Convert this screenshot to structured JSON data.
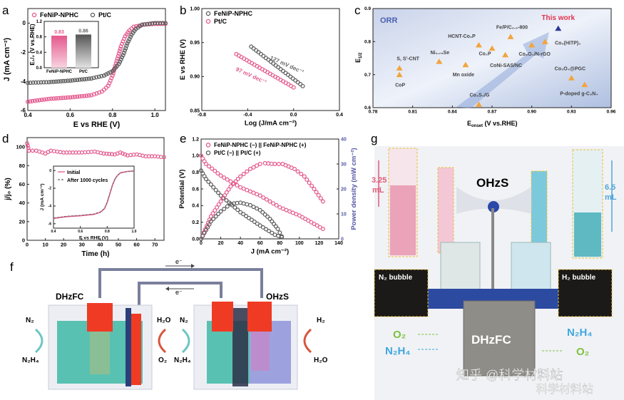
{
  "panel_letters": {
    "a": "a",
    "b": "b",
    "c": "c",
    "d": "d",
    "e": "e",
    "f": "f",
    "g": "g"
  },
  "colors": {
    "pink": "#e4588c",
    "gray": "#5a5a5a",
    "orange": "#f2a43c",
    "navy": "#2b3a96",
    "red": "#e2324e",
    "power_axis": "#5656a6"
  },
  "chart_data": [
    {
      "id": "a",
      "type": "scatter",
      "xlabel": "E vs RHE (V)",
      "ylabel": "J (mA cm⁻²)",
      "xlim": [
        0.4,
        1.05
      ],
      "ylim": [
        -6,
        1
      ],
      "xticks": [
        "0.4",
        "0.6",
        "0.8",
        "1.0"
      ],
      "yticks": [
        "-6",
        "-4",
        "-2",
        "0"
      ],
      "legend": "top-left",
      "series": [
        {
          "name": "FeNiP-NPHC",
          "color": "#e4588c",
          "points": [
            [
              0.4,
              -5.4
            ],
            [
              0.5,
              -5.2
            ],
            [
              0.6,
              -5.1
            ],
            [
              0.7,
              -4.95
            ],
            [
              0.75,
              -4.7
            ],
            [
              0.78,
              -4.3
            ],
            [
              0.8,
              -3.6
            ],
            [
              0.82,
              -2.6
            ],
            [
              0.84,
              -1.6
            ],
            [
              0.86,
              -0.9
            ],
            [
              0.88,
              -0.5
            ],
            [
              0.9,
              -0.25
            ],
            [
              0.95,
              -0.1
            ],
            [
              1.0,
              -0.05
            ],
            [
              1.05,
              -0.05
            ]
          ]
        },
        {
          "name": "Pt/C",
          "color": "#5a5a5a",
          "points": [
            [
              0.4,
              -4.1
            ],
            [
              0.5,
              -4.05
            ],
            [
              0.6,
              -3.95
            ],
            [
              0.7,
              -3.8
            ],
            [
              0.76,
              -3.6
            ],
            [
              0.8,
              -3.3
            ],
            [
              0.83,
              -2.8
            ],
            [
              0.85,
              -2.2
            ],
            [
              0.87,
              -1.4
            ],
            [
              0.89,
              -0.8
            ],
            [
              0.91,
              -0.4
            ],
            [
              0.94,
              -0.1
            ],
            [
              1.0,
              0
            ],
            [
              1.05,
              0
            ]
          ]
        }
      ]
    },
    {
      "id": "a-inset",
      "type": "bar",
      "categories": [
        "FeNiP-NPHC",
        "Pt/C"
      ],
      "values": [
        0.83,
        0.86
      ],
      "data_labels": [
        "0.83",
        "0.86"
      ],
      "colors": [
        "#e4588c",
        "#666666"
      ],
      "ylabel": "E₁/₂ (V vs.RHE)",
      "ylim": [
        0,
        1.2
      ],
      "yticks": [
        "0.0",
        "0.4",
        "0.8",
        "1.2"
      ]
    },
    {
      "id": "b",
      "type": "scatter",
      "xlabel": "Log (J/mA cm⁻²)",
      "ylabel": "E vs RHE (V)",
      "xlim": [
        -0.8,
        0.4
      ],
      "ylim": [
        0.85,
        1.0
      ],
      "xticks": [
        "-0.8",
        "-0.4",
        "0.0",
        "0.4"
      ],
      "yticks": [
        "0.85",
        "0.90",
        "0.95",
        "1.00"
      ],
      "legend": "top-left",
      "series": [
        {
          "name": "FeNiP-NPHC",
          "color": "#5a5a5a",
          "points": [
            [
              -0.37,
              0.944
            ],
            [
              0.08,
              0.886
            ]
          ]
        },
        {
          "name": "Pt/C",
          "color": "#e4588c",
          "points": [
            [
              -0.5,
              0.933
            ],
            [
              0.0,
              0.884
            ]
          ]
        }
      ],
      "annotations": [
        "127 mV dec⁻¹",
        "97 mV dec⁻¹"
      ]
    },
    {
      "id": "c",
      "type": "scatter",
      "xlabel": "E_onset (V vs.RHE)",
      "ylabel": "E1/2",
      "xlabel_main": "E",
      "xlabel_sub": "onset",
      "xlabel_rest": " (V vs.RHE)",
      "ylabel_main": "E",
      "ylabel_sub": "1/2",
      "xlim": [
        0.78,
        0.96
      ],
      "ylim": [
        0.6,
        0.9
      ],
      "xticks": [
        "0.78",
        "0.81",
        "0.84",
        "0.87",
        "0.90",
        "0.93",
        "0.96"
      ],
      "yticks": [
        "0.6",
        "0.7",
        "0.8",
        "0.9"
      ],
      "corner_label": "ORR",
      "points": [
        {
          "label": "S, S'-CNT",
          "x": 0.8,
          "y": 0.72
        },
        {
          "label": "CoP",
          "x": 0.8,
          "y": 0.7
        },
        {
          "label": "Ni₀.₇₅Se",
          "x": 0.83,
          "y": 0.74
        },
        {
          "label": "Mn oxide",
          "x": 0.85,
          "y": 0.73
        },
        {
          "label": "HCNT-Co₂P",
          "x": 0.86,
          "y": 0.79
        },
        {
          "label": "Co₂P",
          "x": 0.87,
          "y": 0.78
        },
        {
          "label": "Co₃S₄/G",
          "x": 0.86,
          "y": 0.61
        },
        {
          "label": "Fe/P/C₆.₅-800",
          "x": 0.884,
          "y": 0.815
        },
        {
          "label": "CoNi-SAS/NC",
          "x": 0.88,
          "y": 0.76
        },
        {
          "label": "Co₃O₄/N-rGO",
          "x": 0.9,
          "y": 0.79
        },
        {
          "label": "Co₃(HITP)₂",
          "x": 0.91,
          "y": 0.8
        },
        {
          "label": "Co₃O₄@PGC",
          "x": 0.93,
          "y": 0.69
        },
        {
          "label": "P-doped g-C₃N₄",
          "x": 0.94,
          "y": 0.67
        },
        {
          "label": "This work",
          "x": 0.92,
          "y": 0.84,
          "highlight": true
        }
      ]
    },
    {
      "id": "d",
      "type": "scatter",
      "xlabel": "Time (h)",
      "ylabel": "j/j₀ (%)",
      "xlim": [
        0,
        75
      ],
      "ylim": [
        0,
        110
      ],
      "xticks": [
        "0",
        "10",
        "20",
        "30",
        "40",
        "50",
        "60",
        "70"
      ],
      "yticks": [
        "0",
        "20",
        "40",
        "60",
        "80",
        "100"
      ],
      "series": [
        {
          "color": "#e4588c",
          "points": [
            [
              0,
              104
            ],
            [
              1,
              96
            ],
            [
              5,
              96
            ],
            [
              10,
              93
            ],
            [
              13,
              96
            ],
            [
              20,
              94
            ],
            [
              30,
              94
            ],
            [
              37,
              95
            ],
            [
              42,
              93
            ],
            [
              48,
              92
            ],
            [
              51,
              94
            ],
            [
              55,
              91
            ],
            [
              60,
              92
            ],
            [
              65,
              90
            ],
            [
              70,
              90
            ],
            [
              75,
              89
            ]
          ]
        }
      ]
    },
    {
      "id": "d-inset",
      "type": "line",
      "xlabel": "E vs RHE (V)",
      "ylabel": "J (mA cm⁻²)",
      "xlim": [
        0.4,
        1.0
      ],
      "ylim": [
        -6.5,
        0.5
      ],
      "xticks": [
        "0.4",
        "0.6",
        "0.8",
        "1.0"
      ],
      "yticks": [
        "-6",
        "-4",
        "-2",
        "0"
      ],
      "legend": "top-left",
      "series": [
        {
          "name": "Initial",
          "style": "solid",
          "color": "#e4588c",
          "points": [
            [
              0.4,
              -5.4
            ],
            [
              0.5,
              -5.2
            ],
            [
              0.6,
              -5.1
            ],
            [
              0.7,
              -4.95
            ],
            [
              0.75,
              -4.7
            ],
            [
              0.78,
              -4.3
            ],
            [
              0.8,
              -3.6
            ],
            [
              0.82,
              -2.6
            ],
            [
              0.84,
              -1.6
            ],
            [
              0.86,
              -0.9
            ],
            [
              0.88,
              -0.5
            ],
            [
              0.9,
              -0.25
            ],
            [
              0.95,
              -0.1
            ],
            [
              1.0,
              -0.05
            ]
          ]
        },
        {
          "name": "After 1000 cycles",
          "style": "dashed",
          "color": "#666666",
          "points": [
            [
              0.4,
              -5.35
            ],
            [
              0.5,
              -5.15
            ],
            [
              0.6,
              -5.05
            ],
            [
              0.7,
              -4.9
            ],
            [
              0.75,
              -4.65
            ],
            [
              0.78,
              -4.25
            ],
            [
              0.8,
              -3.55
            ],
            [
              0.82,
              -2.55
            ],
            [
              0.84,
              -1.55
            ],
            [
              0.86,
              -0.88
            ],
            [
              0.88,
              -0.48
            ],
            [
              0.9,
              -0.24
            ],
            [
              0.95,
              -0.1
            ],
            [
              1.0,
              -0.05
            ]
          ]
        }
      ]
    },
    {
      "id": "e",
      "type": "scatter",
      "xlabel": "J (mA cm⁻²)",
      "ylabel": "Potential (V)",
      "y2label": "Power density (mW cm⁻²)",
      "xlim": [
        0,
        140
      ],
      "ylim": [
        0,
        1.2
      ],
      "y2lim": [
        0,
        40
      ],
      "xticks": [
        "0",
        "20",
        "40",
        "60",
        "80",
        "100",
        "120",
        "140"
      ],
      "yticks": [
        "0.0",
        "0.2",
        "0.4",
        "0.6",
        "0.8",
        "1.0",
        "1.2"
      ],
      "y2ticks": [
        "0",
        "10",
        "20",
        "30",
        "40"
      ],
      "legend": "top-left",
      "series": [
        {
          "name": "FeNiP-NPHC (−) || FeNiP-NPHC (+)",
          "color": "#e4588c",
          "axis": "left",
          "points": [
            [
              0,
              1.0
            ],
            [
              5,
              0.9
            ],
            [
              20,
              0.76
            ],
            [
              40,
              0.62
            ],
            [
              60,
              0.52
            ],
            [
              80,
              0.38
            ],
            [
              100,
              0.28
            ],
            [
              124,
              0.12
            ]
          ]
        },
        {
          "name": "Pt/C (−) || Pt/C (+)",
          "color": "#5a5a5a",
          "axis": "left",
          "points": [
            [
              0,
              0.82
            ],
            [
              5,
              0.72
            ],
            [
              20,
              0.52
            ],
            [
              40,
              0.32
            ],
            [
              60,
              0.16
            ],
            [
              75,
              0.05
            ],
            [
              82,
              0.02
            ]
          ]
        },
        {
          "color": "#e4588c",
          "axis": "right",
          "points": [
            [
              0,
              0
            ],
            [
              10,
              9
            ],
            [
              20,
              15
            ],
            [
              30,
              21
            ],
            [
              40,
              25
            ],
            [
              50,
              28
            ],
            [
              60,
              30
            ],
            [
              65,
              30.3
            ],
            [
              75,
              30
            ],
            [
              83,
              30
            ],
            [
              95,
              28
            ],
            [
              105,
              25
            ],
            [
              115,
              20
            ],
            [
              124,
              15
            ]
          ]
        },
        {
          "color": "#5a5a5a",
          "axis": "right",
          "points": [
            [
              0,
              0
            ],
            [
              10,
              7
            ],
            [
              20,
              11
            ],
            [
              30,
              14
            ],
            [
              40,
              14.5
            ],
            [
              50,
              13.5
            ],
            [
              60,
              11.5
            ],
            [
              70,
              8
            ],
            [
              78,
              4
            ],
            [
              82,
              1
            ]
          ]
        }
      ]
    }
  ],
  "panel_f": {
    "left_title": "DHzFC",
    "right_title": "OHzS",
    "electron_top": "e⁻",
    "electron_bottom": "e⁻",
    "left_in": "N₂",
    "left_out": "N₂H₄",
    "mid_top": "H₂O",
    "mid_bottom": "O₂",
    "right_in": "N₂",
    "right_out": "N₂H₄",
    "far_top": "H₂",
    "far_bottom": "H₂O"
  },
  "panel_g": {
    "title_top": "OHzS",
    "left_volume": "3.25",
    "left_unit": "mL",
    "right_volume": "6.5",
    "right_unit": "mL",
    "left_bubble": "N₂ bubble",
    "right_bubble": "H₂ bubble",
    "cell_label": "DHzFC",
    "left_o2": "O₂",
    "left_n2h4": "N₂H₄",
    "right_n2h4": "N₂H₄",
    "right_o2": "O₂",
    "watermark": "知乎 @科学材料站",
    "watermark2": "科学材料站"
  }
}
